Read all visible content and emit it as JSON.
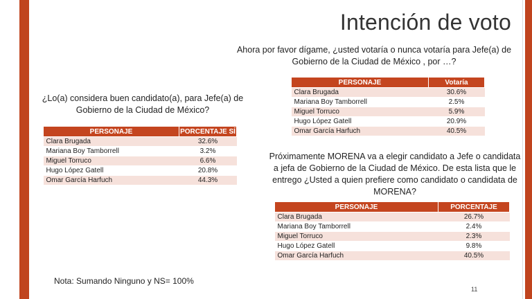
{
  "title": "Intención de voto",
  "question1": "Ahora por favor dígame, ¿usted votaría o nunca votaría para Jefe(a) de Gobierno de la Ciudad de México , por …?",
  "table1": {
    "headers": [
      "PERSONAJE",
      "Votaría"
    ],
    "rows": [
      [
        "Clara Brugada",
        "30.6%"
      ],
      [
        "Mariana Boy Tamborrell",
        "2.5%"
      ],
      [
        "Miguel Torruco",
        "5.9%"
      ],
      [
        "Hugo López Gatell",
        "20.9%"
      ],
      [
        "Omar García Harfuch",
        "40.5%"
      ]
    ]
  },
  "question2": "¿Lo(a) considera buen candidato(a), para Jefe(a) de Gobierno de la Ciudad de México?",
  "table2": {
    "headers": [
      "PERSONAJE",
      "PORCENTAJE SÍ"
    ],
    "rows": [
      [
        "Clara Brugada",
        "32.6%"
      ],
      [
        "Mariana Boy Tamborrell",
        "3.2%"
      ],
      [
        "Miguel Torruco",
        "6.6%"
      ],
      [
        "Hugo López Gatell",
        "20.8%"
      ],
      [
        "Omar García Harfuch",
        "44.3%"
      ]
    ]
  },
  "question3": "Próximamente MORENA va a elegir candidato a Jefe o candidata a jefa de Gobierno de la Ciudad de México.  De esta lista que le entrego ¿Usted a quien prefiere como candidato o candidata de MORENA?",
  "table3": {
    "headers": [
      "PERSONAJE",
      "PORCENTAJE"
    ],
    "rows": [
      [
        "Clara Brugada",
        "26.7%"
      ],
      [
        "Mariana Boy Tamborrell",
        "2.4%"
      ],
      [
        "Miguel Torruco",
        "2.3%"
      ],
      [
        "Hugo López Gatell",
        "9.8%"
      ],
      [
        "Omar García Harfuch",
        "40.5%"
      ]
    ]
  },
  "note": "Nota: Sumando Ninguno y NS= 100%",
  "page_number": "11",
  "colors": {
    "accent": "#c4451f",
    "row_tint": "#f6e1db"
  }
}
